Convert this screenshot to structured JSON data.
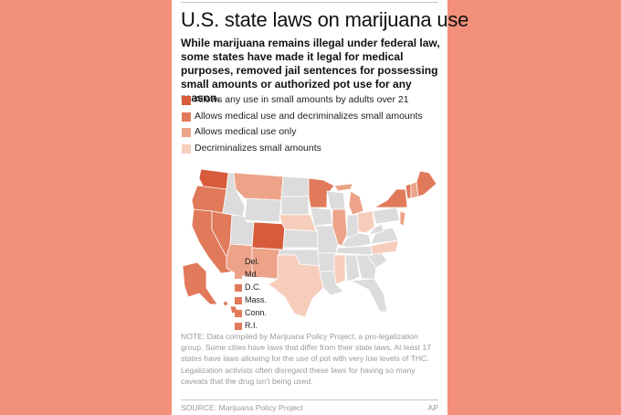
{
  "title": "U.S. state laws on marijuana use",
  "dek": "While marijuana remains illegal under federal law, some states have made it legal for medical purposes, removed jail sentences for possessing small amounts or authorized pot use for any reason.",
  "colors": {
    "any_use": "#d85b3b",
    "medical_decrim": "#e07a5b",
    "medical_only": "#eca388",
    "decrim_only": "#f6cdbb",
    "no_law": "#dcdcdc",
    "background": "#f3907b"
  },
  "legend": [
    {
      "label": "Allows any use in small amounts by adults over 21",
      "category": "any_use"
    },
    {
      "label": "Allows medical use and decriminalizes small amounts",
      "category": "medical_decrim"
    },
    {
      "label": "Allows medical use only",
      "category": "medical_only"
    },
    {
      "label": "Decriminalizes small amounts",
      "category": "decrim_only"
    }
  ],
  "small_states": [
    {
      "label": "Del.",
      "category": "medical_only"
    },
    {
      "label": "Md.",
      "category": "medical_only"
    },
    {
      "label": "D.C.",
      "category": "medical_decrim"
    },
    {
      "label": "Mass.",
      "category": "medical_decrim"
    },
    {
      "label": "Conn.",
      "category": "medical_decrim"
    },
    {
      "label": "R.I.",
      "category": "medical_decrim"
    }
  ],
  "state_categories": {
    "WA": "any_use",
    "OR": "medical_decrim",
    "CA": "medical_decrim",
    "NV": "medical_decrim",
    "ID": "no_law",
    "MT": "medical_only",
    "WY": "no_law",
    "UT": "no_law",
    "AZ": "medical_only",
    "CO": "any_use",
    "NM": "medical_only",
    "ND": "no_law",
    "SD": "no_law",
    "NE": "decrim_only",
    "KS": "no_law",
    "OK": "no_law",
    "TX": "decrim_only",
    "MN": "medical_decrim",
    "IA": "no_law",
    "MO": "no_law",
    "AR": "no_law",
    "LA": "no_law",
    "WI": "no_law",
    "IL": "medical_only",
    "MI": "medical_only",
    "IN": "no_law",
    "OH": "decrim_only",
    "KY": "no_law",
    "TN": "no_law",
    "MS": "decrim_only",
    "AL": "no_law",
    "GA": "no_law",
    "FL": "no_law",
    "SC": "no_law",
    "NC": "decrim_only",
    "VA": "no_law",
    "WV": "no_law",
    "PA": "no_law",
    "NY": "medical_decrim",
    "NJ": "medical_only",
    "VT": "medical_decrim",
    "NH": "medical_only",
    "ME": "medical_decrim",
    "AK": "medical_decrim",
    "HI": "medical_decrim"
  },
  "note": "NOTE: Data compiled by Marijuana Policy Project, a pro-legalization group. Some cities have laws that differ from their state laws. At least 17 states have laws allowing for the use of pot with very low levels of THC. Legalization activists often disregard these laws for having so many caveats that the drug isn't being used.",
  "source": "SOURCE: Marijuana Policy Project",
  "credit": "AP"
}
